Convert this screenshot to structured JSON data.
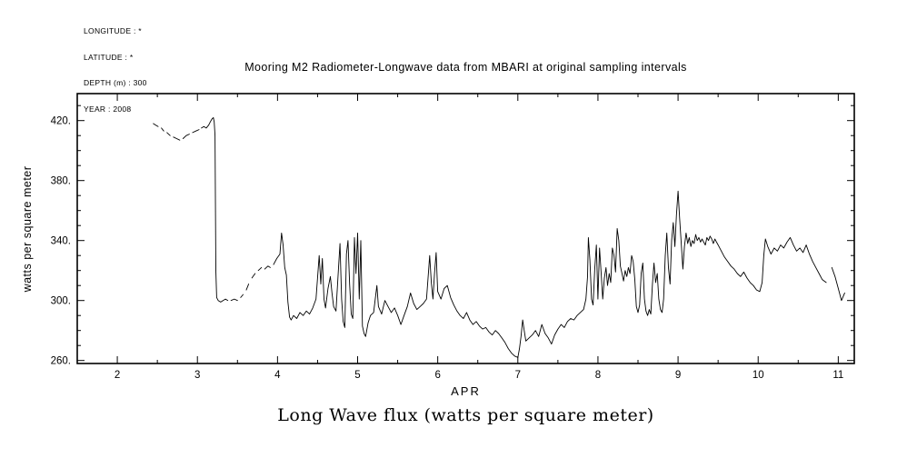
{
  "page": {
    "background": "#ffffff",
    "foreground": "#000000"
  },
  "header": {
    "metadata_lines": [
      "LONGITUDE : *",
      "LATITUDE : *",
      "DEPTH (m) : 300",
      "YEAR : 2008"
    ]
  },
  "chart_data": {
    "type": "line",
    "title": "Mooring M2 Radiometer-Longwave data from MBARI at original sampling intervals",
    "xlabel": "APR",
    "ylabel": "watts per square meter",
    "caption": "Long Wave flux (watts per square meter)",
    "legend": null,
    "grid": false,
    "line_color": "#000000",
    "xlim": [
      1.5,
      11.2
    ],
    "ylim": [
      258,
      438
    ],
    "x_minor_step": 0.5,
    "y_minor_step": 10,
    "xticks": {
      "values": [
        2,
        3,
        4,
        5,
        6,
        7,
        8,
        9,
        10,
        11
      ],
      "labels": [
        "2",
        "3",
        "4",
        "5",
        "6",
        "7",
        "8",
        "9",
        "10",
        "11"
      ]
    },
    "yticks": {
      "values": [
        260,
        300,
        340,
        380,
        420
      ],
      "labels": [
        "260.",
        "300.",
        "340.",
        "380.",
        "420."
      ]
    },
    "series": [
      {
        "name": "longwave flux",
        "points": [
          [
            2.45,
            418
          ],
          [
            2.48,
            417
          ],
          [
            2.51,
            416
          ],
          null,
          [
            2.55,
            415
          ],
          [
            2.58,
            413
          ],
          null,
          [
            2.62,
            412
          ],
          [
            2.66,
            410
          ],
          null,
          [
            2.7,
            409
          ],
          [
            2.74,
            408
          ],
          [
            2.78,
            407
          ],
          null,
          [
            2.82,
            408
          ],
          [
            2.86,
            410
          ],
          [
            2.9,
            411
          ],
          null,
          [
            2.94,
            412
          ],
          [
            2.98,
            413
          ],
          [
            3.02,
            414
          ],
          null,
          [
            3.05,
            415
          ],
          [
            3.08,
            416
          ],
          [
            3.11,
            415
          ],
          [
            3.14,
            417
          ],
          [
            3.16,
            419
          ],
          [
            3.18,
            421
          ],
          [
            3.2,
            422
          ],
          [
            3.21,
            419
          ],
          [
            3.22,
            410
          ],
          [
            3.23,
            320
          ],
          [
            3.24,
            302
          ],
          [
            3.26,
            300
          ],
          [
            3.29,
            299
          ],
          [
            3.32,
            300
          ],
          [
            3.35,
            301
          ],
          [
            3.38,
            300
          ],
          null,
          [
            3.42,
            300
          ],
          [
            3.46,
            301
          ],
          [
            3.5,
            300
          ],
          null,
          [
            3.54,
            302
          ],
          [
            3.57,
            304
          ],
          null,
          [
            3.61,
            307
          ],
          [
            3.64,
            311
          ],
          null,
          [
            3.68,
            315
          ],
          [
            3.72,
            318
          ],
          null,
          [
            3.76,
            320
          ],
          [
            3.8,
            322
          ],
          null,
          [
            3.84,
            321
          ],
          [
            3.88,
            323
          ],
          [
            3.91,
            322
          ],
          null,
          [
            3.95,
            324
          ],
          [
            3.99,
            328
          ],
          [
            4.03,
            331
          ],
          [
            4.05,
            345
          ],
          [
            4.07,
            337
          ],
          [
            4.09,
            322
          ],
          [
            4.11,
            317
          ],
          [
            4.13,
            299
          ],
          [
            4.15,
            289
          ],
          [
            4.17,
            287
          ],
          [
            4.2,
            290
          ],
          [
            4.24,
            288
          ],
          [
            4.28,
            292
          ],
          [
            4.32,
            290
          ],
          [
            4.36,
            293
          ],
          [
            4.4,
            291
          ],
          [
            4.44,
            295
          ],
          [
            4.48,
            301
          ],
          [
            4.52,
            330
          ],
          [
            4.54,
            311
          ],
          [
            4.56,
            328
          ],
          [
            4.58,
            301
          ],
          [
            4.6,
            295
          ],
          [
            4.63,
            308
          ],
          [
            4.66,
            316
          ],
          [
            4.68,
            305
          ],
          [
            4.7,
            296
          ],
          [
            4.73,
            293
          ],
          [
            4.76,
            321
          ],
          [
            4.78,
            338
          ],
          [
            4.8,
            301
          ],
          [
            4.82,
            286
          ],
          [
            4.84,
            282
          ],
          [
            4.86,
            331
          ],
          [
            4.88,
            340
          ],
          [
            4.9,
            311
          ],
          [
            4.92,
            291
          ],
          [
            4.94,
            288
          ],
          [
            4.96,
            342
          ],
          [
            4.98,
            318
          ],
          [
            5.0,
            345
          ],
          [
            5.02,
            301
          ],
          [
            5.04,
            340
          ],
          [
            5.06,
            283
          ],
          [
            5.08,
            278
          ],
          [
            5.1,
            276
          ],
          [
            5.13,
            285
          ],
          [
            5.16,
            290
          ],
          [
            5.2,
            292
          ],
          [
            5.24,
            310
          ],
          [
            5.26,
            296
          ],
          [
            5.3,
            291
          ],
          [
            5.34,
            300
          ],
          [
            5.38,
            296
          ],
          [
            5.42,
            292
          ],
          [
            5.46,
            295
          ],
          [
            5.5,
            290
          ],
          [
            5.54,
            284
          ],
          [
            5.58,
            290
          ],
          [
            5.62,
            296
          ],
          [
            5.66,
            305
          ],
          [
            5.7,
            298
          ],
          [
            5.74,
            294
          ],
          [
            5.78,
            296
          ],
          [
            5.82,
            298
          ],
          [
            5.86,
            301
          ],
          [
            5.9,
            330
          ],
          [
            5.92,
            312
          ],
          [
            5.94,
            301
          ],
          [
            5.96,
            318
          ],
          [
            5.98,
            332
          ],
          [
            6.0,
            306
          ],
          [
            6.04,
            301
          ],
          [
            6.08,
            308
          ],
          [
            6.12,
            310
          ],
          [
            6.16,
            302
          ],
          [
            6.2,
            297
          ],
          [
            6.24,
            293
          ],
          [
            6.28,
            290
          ],
          [
            6.32,
            288
          ],
          [
            6.36,
            292
          ],
          [
            6.4,
            287
          ],
          [
            6.44,
            284
          ],
          [
            6.48,
            286
          ],
          [
            6.52,
            283
          ],
          [
            6.56,
            281
          ],
          [
            6.6,
            282
          ],
          [
            6.64,
            279
          ],
          [
            6.68,
            277
          ],
          [
            6.72,
            280
          ],
          [
            6.76,
            278
          ],
          [
            6.8,
            275
          ],
          [
            6.84,
            272
          ],
          [
            6.88,
            268
          ],
          [
            6.92,
            265
          ],
          [
            6.96,
            263
          ],
          [
            7.0,
            262
          ],
          [
            7.02,
            268
          ],
          [
            7.04,
            276
          ],
          [
            7.06,
            287
          ],
          [
            7.08,
            280
          ],
          [
            7.1,
            273
          ],
          [
            7.14,
            275
          ],
          [
            7.18,
            277
          ],
          [
            7.22,
            280
          ],
          [
            7.26,
            276
          ],
          [
            7.3,
            284
          ],
          [
            7.34,
            278
          ],
          [
            7.38,
            275
          ],
          [
            7.42,
            271
          ],
          [
            7.46,
            277
          ],
          [
            7.5,
            281
          ],
          [
            7.54,
            284
          ],
          [
            7.58,
            282
          ],
          [
            7.62,
            286
          ],
          [
            7.66,
            288
          ],
          [
            7.7,
            287
          ],
          [
            7.74,
            290
          ],
          [
            7.78,
            292
          ],
          [
            7.82,
            294
          ],
          [
            7.85,
            301
          ],
          [
            7.87,
            316
          ],
          [
            7.88,
            342
          ],
          [
            7.9,
            327
          ],
          [
            7.92,
            301
          ],
          [
            7.94,
            297
          ],
          [
            7.96,
            321
          ],
          [
            7.98,
            337
          ],
          [
            8.0,
            301
          ],
          [
            8.02,
            335
          ],
          [
            8.04,
            318
          ],
          [
            8.06,
            301
          ],
          [
            8.08,
            315
          ],
          [
            8.1,
            322
          ],
          [
            8.12,
            310
          ],
          [
            8.14,
            318
          ],
          [
            8.16,
            312
          ],
          [
            8.18,
            335
          ],
          [
            8.2,
            330
          ],
          [
            8.22,
            319
          ],
          [
            8.24,
            348
          ],
          [
            8.26,
            340
          ],
          [
            8.28,
            323
          ],
          [
            8.3,
            318
          ],
          [
            8.32,
            313
          ],
          [
            8.34,
            320
          ],
          [
            8.36,
            316
          ],
          [
            8.38,
            322
          ],
          [
            8.4,
            318
          ],
          [
            8.42,
            330
          ],
          [
            8.44,
            326
          ],
          [
            8.46,
            314
          ],
          [
            8.48,
            296
          ],
          [
            8.5,
            292
          ],
          [
            8.52,
            297
          ],
          [
            8.54,
            318
          ],
          [
            8.56,
            325
          ],
          [
            8.58,
            301
          ],
          [
            8.6,
            293
          ],
          [
            8.62,
            290
          ],
          [
            8.64,
            294
          ],
          [
            8.66,
            291
          ],
          [
            8.68,
            311
          ],
          [
            8.7,
            325
          ],
          [
            8.72,
            312
          ],
          [
            8.74,
            318
          ],
          [
            8.76,
            301
          ],
          [
            8.78,
            294
          ],
          [
            8.8,
            292
          ],
          [
            8.82,
            301
          ],
          [
            8.84,
            330
          ],
          [
            8.86,
            345
          ],
          [
            8.88,
            322
          ],
          [
            8.9,
            311
          ],
          [
            8.92,
            340
          ],
          [
            8.94,
            352
          ],
          [
            8.96,
            336
          ],
          [
            8.98,
            357
          ],
          [
            9.0,
            373
          ],
          [
            9.02,
            355
          ],
          [
            9.04,
            338
          ],
          [
            9.06,
            321
          ],
          [
            9.08,
            336
          ],
          [
            9.1,
            345
          ],
          [
            9.12,
            338
          ],
          [
            9.14,
            342
          ],
          [
            9.16,
            336
          ],
          [
            9.18,
            340
          ],
          [
            9.2,
            338
          ],
          [
            9.22,
            344
          ],
          [
            9.24,
            340
          ],
          [
            9.26,
            342
          ],
          [
            9.28,
            339
          ],
          [
            9.3,
            341
          ],
          [
            9.32,
            339
          ],
          [
            9.34,
            337
          ],
          [
            9.36,
            342
          ],
          [
            9.38,
            340
          ],
          [
            9.4,
            343
          ],
          [
            9.42,
            341
          ],
          [
            9.44,
            338
          ],
          [
            9.46,
            341
          ],
          [
            9.48,
            339
          ],
          [
            9.5,
            337
          ],
          [
            9.54,
            333
          ],
          [
            9.58,
            329
          ],
          [
            9.62,
            326
          ],
          [
            9.66,
            323
          ],
          [
            9.7,
            321
          ],
          [
            9.74,
            318
          ],
          [
            9.78,
            316
          ],
          [
            9.82,
            319
          ],
          [
            9.86,
            315
          ],
          [
            9.9,
            312
          ],
          [
            9.94,
            310
          ],
          [
            9.98,
            307
          ],
          [
            10.02,
            306
          ],
          [
            10.05,
            312
          ],
          [
            10.07,
            330
          ],
          [
            10.09,
            341
          ],
          [
            10.12,
            336
          ],
          [
            10.16,
            331
          ],
          [
            10.2,
            335
          ],
          [
            10.24,
            333
          ],
          [
            10.28,
            337
          ],
          [
            10.32,
            335
          ],
          [
            10.36,
            339
          ],
          [
            10.4,
            342
          ],
          [
            10.44,
            337
          ],
          [
            10.48,
            333
          ],
          [
            10.52,
            335
          ],
          [
            10.56,
            332
          ],
          [
            10.6,
            337
          ],
          [
            10.64,
            331
          ],
          [
            10.68,
            326
          ],
          [
            10.72,
            322
          ],
          [
            10.76,
            318
          ],
          [
            10.8,
            314
          ],
          [
            10.85,
            312
          ],
          null,
          [
            10.92,
            322
          ],
          [
            10.96,
            316
          ],
          [
            11.0,
            308
          ],
          [
            11.04,
            300
          ],
          [
            11.08,
            305
          ]
        ]
      }
    ]
  }
}
